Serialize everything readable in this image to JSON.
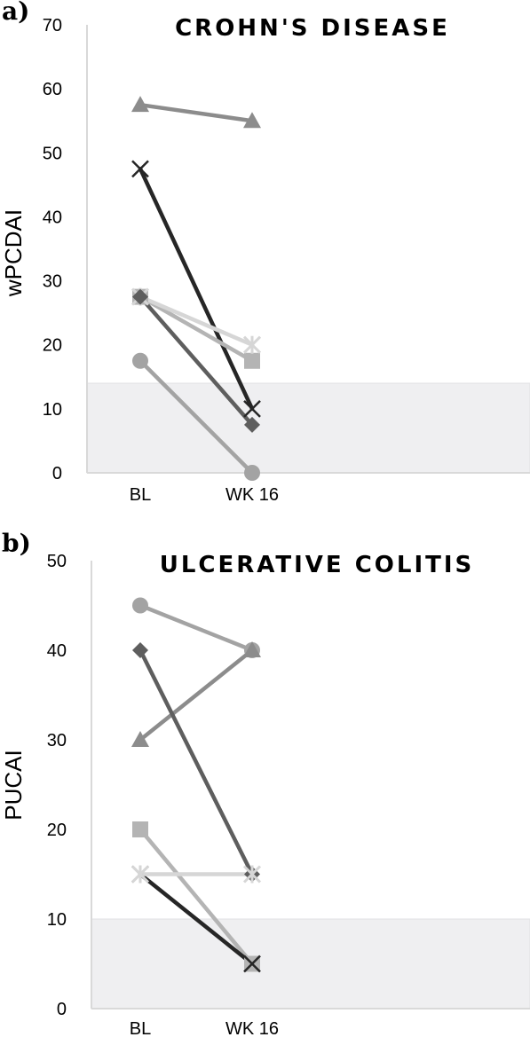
{
  "chart_data": [
    {
      "panel_label": "a)",
      "type": "line",
      "title": "CROHN'S DISEASE",
      "ylabel": "wPCDAI",
      "xlabel": "",
      "categories": [
        "BL",
        "WK 16"
      ],
      "ylim": [
        0,
        70
      ],
      "yticks": [
        0,
        10,
        20,
        30,
        40,
        50,
        60,
        70
      ],
      "grid": false,
      "remission_band": [
        0,
        14
      ],
      "series": [
        {
          "marker": "triangle",
          "color": "#8c8c8c",
          "values": [
            57.5,
            55
          ]
        },
        {
          "marker": "x",
          "color": "#262626",
          "values": [
            47.5,
            10
          ]
        },
        {
          "marker": "square",
          "color": "#b4b4b4",
          "values": [
            27.5,
            17.5
          ]
        },
        {
          "marker": "star",
          "color": "#d6d6d6",
          "values": [
            27.5,
            20
          ]
        },
        {
          "marker": "diamond",
          "color": "#5e5e5e",
          "values": [
            27.5,
            7.5
          ]
        },
        {
          "marker": "circle",
          "color": "#a3a3a3",
          "values": [
            17.5,
            0
          ]
        }
      ]
    },
    {
      "panel_label": "b)",
      "type": "line",
      "title": "ULCERATIVE COLITIS",
      "ylabel": "PUCAI",
      "xlabel": "",
      "categories": [
        "BL",
        "WK 16"
      ],
      "ylim": [
        0,
        50
      ],
      "yticks": [
        0,
        10,
        20,
        30,
        40,
        50
      ],
      "grid": false,
      "remission_band": [
        0,
        10
      ],
      "series": [
        {
          "marker": "circle",
          "color": "#a3a3a3",
          "values": [
            45,
            40
          ]
        },
        {
          "marker": "triangle",
          "color": "#8c8c8c",
          "values": [
            30,
            40
          ]
        },
        {
          "marker": "diamond",
          "color": "#5e5e5e",
          "values": [
            40,
            15
          ]
        },
        {
          "marker": "square",
          "color": "#b4b4b4",
          "values": [
            20,
            5
          ]
        },
        {
          "marker": "x",
          "color": "#262626",
          "values": [
            15,
            5
          ]
        },
        {
          "marker": "star",
          "color": "#d6d6d6",
          "values": [
            15,
            15
          ]
        }
      ]
    }
  ]
}
